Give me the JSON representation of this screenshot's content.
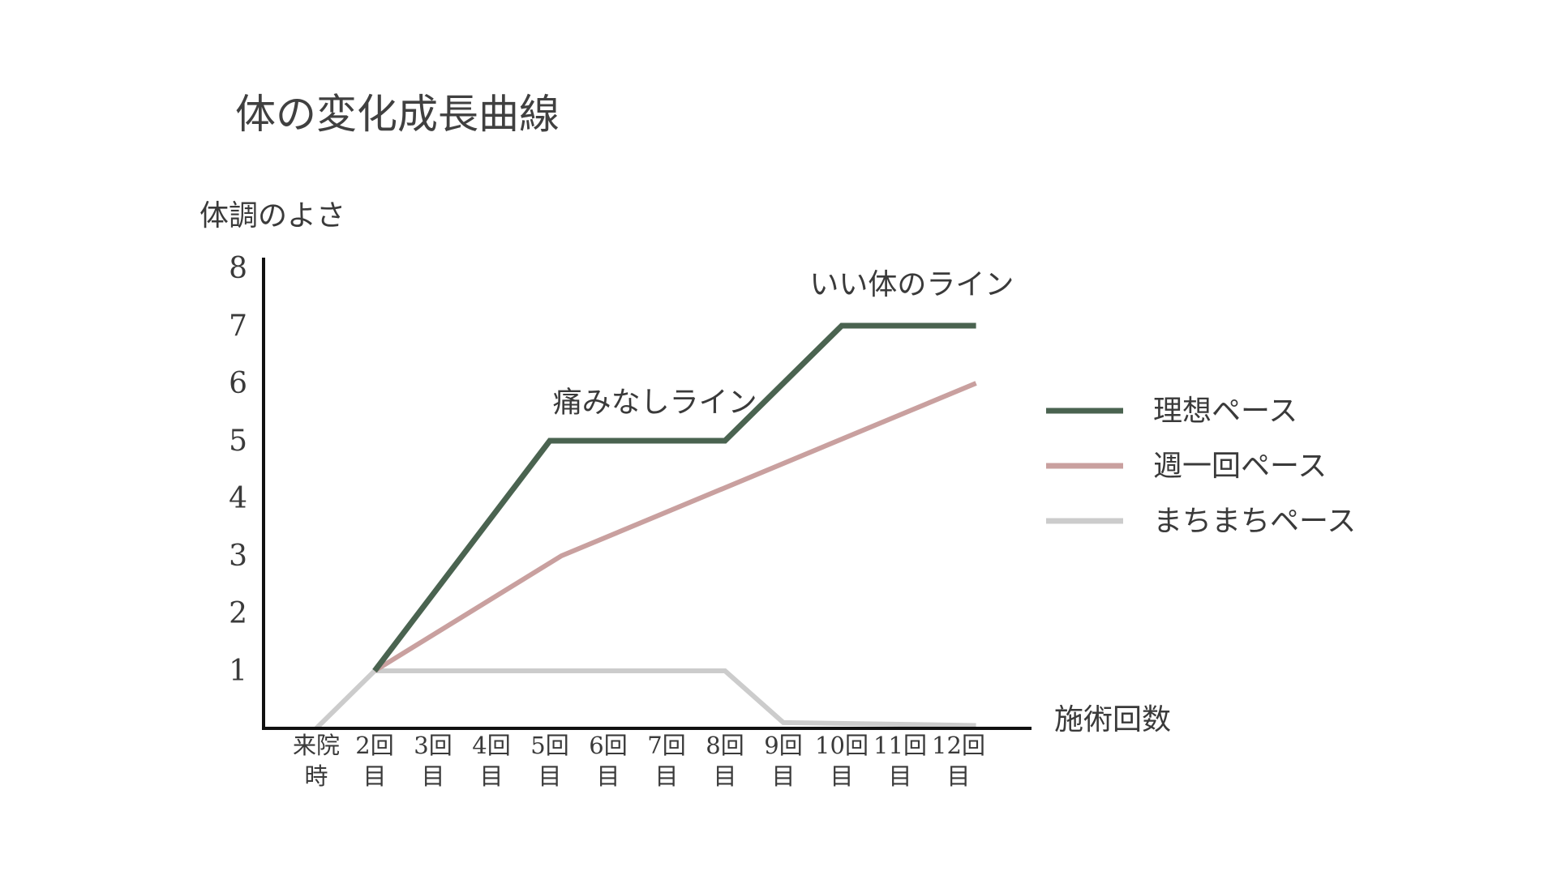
{
  "chart_data": {
    "type": "line",
    "title": "体の変化成長曲線",
    "ylabel": "体調のよさ",
    "xlabel": "施術回数",
    "ylim": [
      0,
      8
    ],
    "yticks": [
      "1",
      "2",
      "3",
      "4",
      "5",
      "6",
      "7",
      "8"
    ],
    "categories": [
      {
        "top": "来院",
        "bottom": "時"
      },
      {
        "top": "2回",
        "bottom": "目"
      },
      {
        "top": "3回",
        "bottom": "目"
      },
      {
        "top": "4回",
        "bottom": "目"
      },
      {
        "top": "5回",
        "bottom": "目"
      },
      {
        "top": "6回",
        "bottom": "目"
      },
      {
        "top": "7回",
        "bottom": "目"
      },
      {
        "top": "8回",
        "bottom": "目"
      },
      {
        "top": "9回",
        "bottom": "目"
      },
      {
        "top": "10回",
        "bottom": "目"
      },
      {
        "top": "11回",
        "bottom": "目"
      },
      {
        "top": "12回",
        "bottom": "目"
      }
    ],
    "series": [
      {
        "name": "理想ペース",
        "color": "#4a6350",
        "points": [
          [
            1,
            1
          ],
          [
            4,
            5
          ],
          [
            7,
            5
          ],
          [
            9,
            7
          ],
          [
            11.3,
            7
          ]
        ]
      },
      {
        "name": "週一回ペース",
        "color": "#c9a09f",
        "points": [
          [
            1,
            1
          ],
          [
            4.2,
            3
          ],
          [
            11.3,
            6
          ]
        ]
      },
      {
        "name": "まちまちペース",
        "color": "#cccccc",
        "points": [
          [
            0,
            0
          ],
          [
            1,
            1
          ],
          [
            7,
            1
          ],
          [
            8,
            0.1
          ],
          [
            11.3,
            0.05
          ]
        ]
      }
    ],
    "annotations": [
      {
        "text": "痛みなしライン",
        "x": 5.8,
        "y": 5.5
      },
      {
        "text": "いい体のライン",
        "x": 10.2,
        "y": 7.55
      }
    ],
    "legend": "right"
  }
}
